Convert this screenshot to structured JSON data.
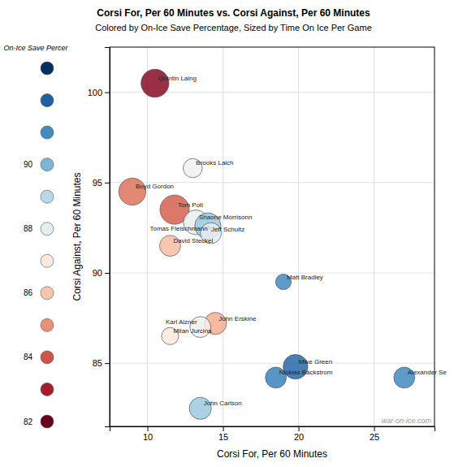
{
  "chart_data": {
    "type": "scatter",
    "title": "Corsi For, Per 60 Minutes vs. Corsi Against, Per 60 Minutes",
    "subtitle": "Colored by On-Ice Save Percentage, Sized by Time On Ice Per Game",
    "x_label": "Corsi For, Per 60 Minutes",
    "y_label": "Corsi Against, Per 60 Minutes",
    "point_labels": [
      "Quintin Laing",
      "Brooks Laich",
      "Boyd Gordon",
      "Tom Poti",
      "Shaone Morrisonn",
      "Jeff Schultz",
      "Tomas Fleischmann",
      "David Steckel",
      "Matt Bradley",
      "John Erskine",
      "Karl Alzner",
      "Milan Jurcina",
      "Mike Green",
      "Nicklas Backstrom",
      "Alexander Se",
      "John Carlson"
    ],
    "x": [
      10.5,
      13.0,
      9.0,
      11.8,
      13.2,
      14.0,
      14.2,
      11.5,
      19.0,
      14.5,
      13.5,
      11.5,
      19.8,
      18.5,
      27.0,
      13.5
    ],
    "values": [
      100.5,
      95.8,
      94.5,
      93.5,
      92.8,
      92.6,
      92.2,
      91.5,
      89.5,
      87.2,
      87.0,
      86.5,
      84.8,
      84.2,
      84.2,
      82.5
    ],
    "sizes": [
      3.2,
      1.5,
      3.0,
      3.5,
      2.5,
      2.8,
      1.8,
      1.8,
      1.0,
      2.0,
      1.8,
      1.2,
      2.5,
      1.8,
      1.8,
      2.0
    ],
    "color_values": [
      82.5,
      87.5,
      84.5,
      84.2,
      87.8,
      89.5,
      88.0,
      85.8,
      91.0,
      85.5,
      87.5,
      87.0,
      91.8,
      91.2,
      91.0,
      89.5
    ],
    "colorscale": {
      "title": "On-Ice Save Percer",
      "range": [
        82.0,
        93.0
      ],
      "mid": 87.5,
      "values": [
        93,
        92,
        91,
        90,
        89,
        88,
        87,
        86,
        85,
        84,
        83,
        82
      ],
      "ticks": [
        90,
        88,
        86,
        84,
        82
      ]
    },
    "annotations": [
      "war-on-ice.com"
    ],
    "xlim": [
      7.5,
      29
    ],
    "ylim": [
      81.5,
      102.5
    ],
    "xticks": [
      10,
      15,
      20,
      25
    ],
    "yticks": [
      85,
      90,
      95,
      100
    ],
    "grid": true
  }
}
